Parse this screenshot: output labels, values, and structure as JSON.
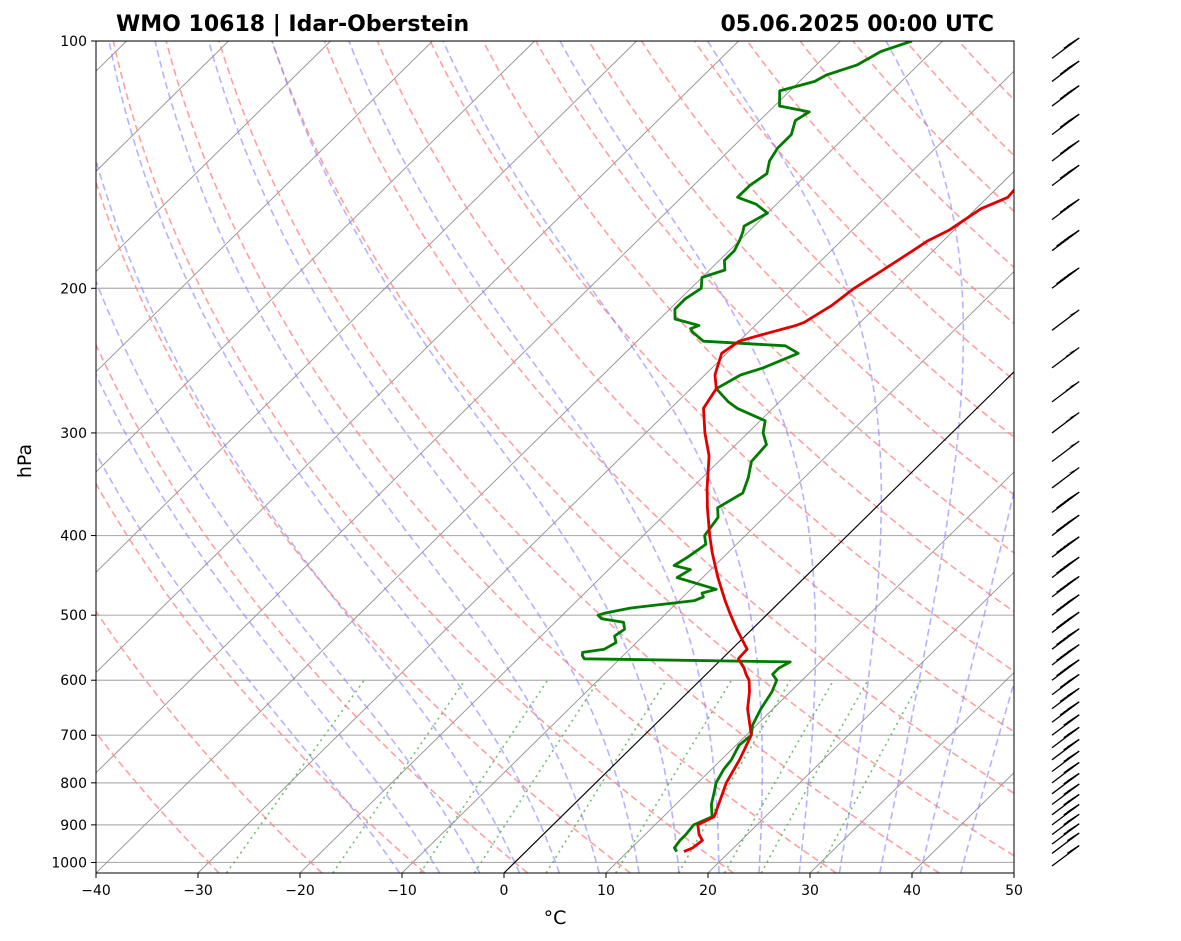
{
  "chart_data": {
    "type": "skew-t log-p",
    "title_left": "WMO 10618 | Idar-Oberstein",
    "title_right": "05.06.2025 00:00 UTC",
    "xlabel": "°C",
    "ylabel": "hPa",
    "xlim": [
      -40,
      50
    ],
    "ylim_hpa": [
      1030,
      100
    ],
    "x_ticks": [
      -40,
      -30,
      -20,
      -10,
      0,
      10,
      20,
      30,
      40,
      50
    ],
    "y_ticks": [
      1000,
      900,
      800,
      700,
      600,
      500,
      400,
      300,
      200,
      100
    ],
    "grid": true,
    "colors": {
      "temperature": "#e00000",
      "dewpoint": "#007a00",
      "dry_adiabats": "#ff8080",
      "moist_adiabats": "#8080ff",
      "mixing_ratio": "#4cae4c",
      "isotherms": "#808080",
      "zero_isotherm": "#000000"
    },
    "temperature": {
      "p": [
        970,
        960,
        940,
        925,
        900,
        880,
        850,
        800,
        750,
        700,
        650,
        620,
        600,
        590,
        580,
        565,
        550,
        520,
        500,
        480,
        450,
        420,
        400,
        370,
        350,
        320,
        300,
        280,
        265,
        255,
        250,
        240,
        232,
        228,
        222,
        220,
        210,
        200,
        190,
        180,
        175,
        170,
        160,
        155,
        150,
        145,
        140,
        135,
        130,
        125,
        120,
        115,
        110,
        108,
        105,
        100
      ],
      "t": [
        15.5,
        16.0,
        16.2,
        15.3,
        14.2,
        15.0,
        14.2,
        12.8,
        11.8,
        10.5,
        7.5,
        6.0,
        4.8,
        3.9,
        3.1,
        1.6,
        1.5,
        -1.5,
        -3.5,
        -5.5,
        -8.5,
        -11.5,
        -13.5,
        -16.5,
        -18.5,
        -21.5,
        -24.2,
        -26.8,
        -27.5,
        -29.0,
        -29.5,
        -30.5,
        -30.0,
        -28.5,
        -26.0,
        -25.5,
        -24.5,
        -24.0,
        -23.0,
        -22.0,
        -21.5,
        -20.5,
        -19.5,
        -18.0,
        -18.2,
        -17.5,
        -17.3,
        -16.5,
        -15.5,
        -15.0,
        -14.5,
        -13.5,
        -11.0,
        -5.0,
        -3.5,
        -3.0
      ]
    },
    "dewpoint": {
      "p": [
        970,
        960,
        940,
        925,
        900,
        880,
        850,
        820,
        800,
        770,
        750,
        720,
        700,
        680,
        650,
        620,
        600,
        590,
        580,
        570,
        565,
        560,
        555,
        550,
        540,
        530,
        520,
        510,
        505,
        500,
        497,
        490,
        480,
        475,
        470,
        465,
        450,
        440,
        435,
        425,
        410,
        400,
        380,
        370,
        355,
        340,
        325,
        310,
        300,
        290,
        280,
        275,
        265,
        255,
        250,
        245,
        240,
        235,
        232,
        226,
        224,
        222,
        218,
        212,
        206,
        200,
        194,
        190,
        185,
        180,
        175,
        171,
        168,
        165,
        162,
        158,
        155,
        150,
        145,
        140,
        135,
        130,
        125,
        122,
        120,
        115,
        112,
        110,
        107,
        103,
        100
      ],
      "td": [
        14.8,
        14.2,
        14.0,
        14.0,
        13.8,
        14.8,
        13.5,
        12.5,
        11.8,
        11.2,
        11.0,
        10.3,
        10.5,
        9.6,
        8.8,
        8.2,
        7.5,
        6.5,
        6.5,
        7.0,
        -13.5,
        -14.0,
        -14.3,
        -12.5,
        -12.0,
        -12.8,
        -12.5,
        -13.3,
        -15.8,
        -16.5,
        -16.0,
        -14.0,
        -8.5,
        -8.0,
        -8.5,
        -7.5,
        -12.5,
        -12.0,
        -14.0,
        -13.5,
        -13.0,
        -14.0,
        -14.5,
        -15.5,
        -14.5,
        -15.5,
        -16.8,
        -17.0,
        -18.5,
        -19.5,
        -23.5,
        -25.0,
        -27.5,
        -26.5,
        -25.0,
        -24.0,
        -23.0,
        -25.0,
        -33.5,
        -35.5,
        -36.0,
        -35.5,
        -38.5,
        -39.5,
        -39.5,
        -39.0,
        -40.0,
        -38.5,
        -39.5,
        -39.5,
        -40.0,
        -40.5,
        -41.0,
        -40.5,
        -40.0,
        -42.0,
        -44.5,
        -44.5,
        -44.0,
        -45.0,
        -45.5,
        -45.5,
        -46.5,
        -46.0,
        -49.5,
        -51.0,
        -48.5,
        -48.0,
        -46.0,
        -45.0,
        -43.0
      ]
    },
    "wind_barbs": {
      "p": [
        1010,
        975,
        950,
        925,
        900,
        875,
        850,
        825,
        800,
        775,
        750,
        725,
        700,
        675,
        650,
        625,
        600,
        575,
        550,
        525,
        500,
        475,
        450,
        425,
        400,
        375,
        350,
        325,
        300,
        275,
        250,
        225,
        200,
        180,
        165,
        150,
        140,
        130,
        120,
        112,
        105
      ],
      "speed_kt": [
        10,
        15,
        20,
        20,
        20,
        20,
        20,
        20,
        25,
        25,
        25,
        25,
        25,
        30,
        30,
        35,
        40,
        40,
        45,
        45,
        45,
        45,
        45,
        45,
        45,
        45,
        50,
        50,
        55,
        55,
        55,
        50,
        45,
        40,
        35,
        35,
        35,
        30,
        30,
        30,
        25
      ]
    }
  }
}
